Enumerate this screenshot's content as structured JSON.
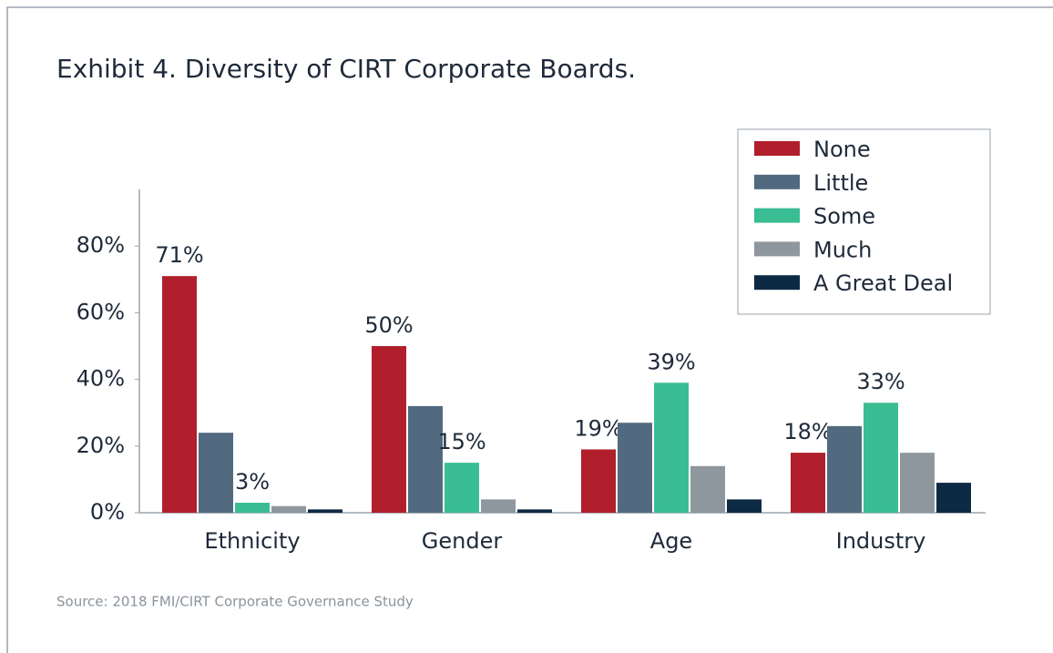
{
  "chart_data": {
    "type": "bar",
    "title": "Exhibit 4. Diversity of CIRT Corporate Boards.",
    "source": "Source: 2018 FMI/CIRT Corporate Governance Study",
    "categories": [
      "Ethnicity",
      "Gender",
      "Age",
      "Industry"
    ],
    "series": [
      {
        "name": "None",
        "color": "#b01f2b",
        "values": [
          71,
          50,
          19,
          18
        ],
        "value_labels": [
          "71%",
          "50%",
          "19%",
          "18%"
        ]
      },
      {
        "name": "Little",
        "color": "#526a80",
        "values": [
          24,
          32,
          27,
          26
        ],
        "value_labels": [
          null,
          null,
          null,
          null
        ]
      },
      {
        "name": "Some",
        "color": "#3bbd93",
        "values": [
          3,
          15,
          39,
          33
        ],
        "value_labels": [
          "3%",
          "15%",
          "39%",
          "33%"
        ]
      },
      {
        "name": "Much",
        "color": "#8e979e",
        "values": [
          2,
          4,
          14,
          18
        ],
        "value_labels": [
          null,
          null,
          null,
          null
        ]
      },
      {
        "name": "A Great Deal",
        "color": "#0d2a45",
        "values": [
          1,
          1,
          4,
          9
        ],
        "value_labels": [
          null,
          null,
          null,
          null
        ]
      }
    ],
    "ylim": [
      0,
      97
    ],
    "yticks": [
      {
        "value": 0,
        "label": "0%"
      },
      {
        "value": 20,
        "label": "20%"
      },
      {
        "value": 40,
        "label": "40%"
      },
      {
        "value": 60,
        "label": "60%"
      },
      {
        "value": 80,
        "label": "80%"
      }
    ],
    "grid": false,
    "legend": "upper right"
  }
}
